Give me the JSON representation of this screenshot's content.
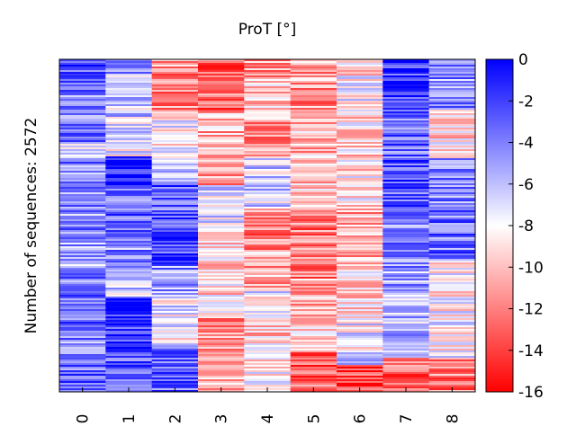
{
  "chart_data": {
    "type": "heatmap",
    "title": "ProT [°]",
    "ylabel": "Number of sequences: 2572",
    "xlabel": "",
    "x_categories": [
      "0",
      "1",
      "2",
      "3",
      "4",
      "5",
      "6",
      "7",
      "8"
    ],
    "colorbar": {
      "range": [
        -16,
        0
      ],
      "ticks": [
        "0",
        "-2",
        "-4",
        "-6",
        "-8",
        "-10",
        "-12",
        "-14",
        "-16"
      ],
      "colormap": "bwr_r",
      "low_color": "#ff0000",
      "mid_color": "#ffffff",
      "high_color": "#0000ff"
    },
    "rows": 2572,
    "column_profiles": [
      {
        "column": "0",
        "segments": [
          [
            0.0,
            0.1,
            -3.0
          ],
          [
            0.1,
            0.2,
            -4.5
          ],
          [
            0.2,
            0.25,
            -3.5
          ],
          [
            0.25,
            0.3,
            -6.5
          ],
          [
            0.3,
            0.42,
            -4.0
          ],
          [
            0.42,
            0.55,
            -4.5
          ],
          [
            0.55,
            0.65,
            -5.0
          ],
          [
            0.65,
            0.8,
            -3.5
          ],
          [
            0.8,
            0.9,
            -4.0
          ],
          [
            0.9,
            1.0,
            -3.5
          ]
        ]
      },
      {
        "column": "1",
        "segments": [
          [
            0.0,
            0.05,
            -4.0
          ],
          [
            0.05,
            0.18,
            -6.5
          ],
          [
            0.18,
            0.29,
            -7.5
          ],
          [
            0.29,
            0.38,
            -1.2
          ],
          [
            0.38,
            0.45,
            -3.5
          ],
          [
            0.45,
            0.55,
            -3.0
          ],
          [
            0.55,
            0.62,
            -4.5
          ],
          [
            0.62,
            0.72,
            -6.0
          ],
          [
            0.72,
            0.86,
            -1.5
          ],
          [
            0.86,
            1.0,
            -2.5
          ]
        ]
      },
      {
        "column": "2",
        "segments": [
          [
            0.0,
            0.04,
            -11.0
          ],
          [
            0.04,
            0.17,
            -11.5
          ],
          [
            0.17,
            0.29,
            -8.0
          ],
          [
            0.29,
            0.38,
            -7.0
          ],
          [
            0.38,
            0.52,
            -3.0
          ],
          [
            0.52,
            0.62,
            -2.0
          ],
          [
            0.62,
            0.72,
            -4.5
          ],
          [
            0.72,
            0.86,
            -7.5
          ],
          [
            0.86,
            1.0,
            -3.0
          ]
        ]
      },
      {
        "column": "3",
        "segments": [
          [
            0.0,
            0.05,
            -13.5
          ],
          [
            0.05,
            0.16,
            -12.5
          ],
          [
            0.16,
            0.29,
            -10.5
          ],
          [
            0.29,
            0.38,
            -11.5
          ],
          [
            0.38,
            0.5,
            -7.0
          ],
          [
            0.5,
            0.62,
            -9.5
          ],
          [
            0.62,
            0.76,
            -9.0
          ],
          [
            0.76,
            0.86,
            -11.0
          ],
          [
            0.86,
            1.0,
            -10.5
          ]
        ]
      },
      {
        "column": "4",
        "segments": [
          [
            0.0,
            0.06,
            -11.0
          ],
          [
            0.06,
            0.18,
            -9.5
          ],
          [
            0.18,
            0.29,
            -11.0
          ],
          [
            0.29,
            0.45,
            -6.5
          ],
          [
            0.45,
            0.58,
            -12.0
          ],
          [
            0.58,
            0.7,
            -10.5
          ],
          [
            0.7,
            0.8,
            -7.5
          ],
          [
            0.8,
            0.9,
            -9.5
          ],
          [
            0.9,
            1.0,
            -8.5
          ]
        ]
      },
      {
        "column": "5",
        "segments": [
          [
            0.0,
            0.08,
            -11.0
          ],
          [
            0.08,
            0.18,
            -11.5
          ],
          [
            0.18,
            0.3,
            -10.0
          ],
          [
            0.3,
            0.45,
            -10.0
          ],
          [
            0.45,
            0.66,
            -12.0
          ],
          [
            0.66,
            0.76,
            -10.5
          ],
          [
            0.76,
            0.88,
            -10.0
          ],
          [
            0.88,
            1.0,
            -13.0
          ]
        ]
      },
      {
        "column": "6",
        "segments": [
          [
            0.0,
            0.05,
            -9.5
          ],
          [
            0.05,
            0.15,
            -8.0
          ],
          [
            0.15,
            0.35,
            -9.0
          ],
          [
            0.35,
            0.45,
            -8.5
          ],
          [
            0.45,
            0.62,
            -10.5
          ],
          [
            0.62,
            0.76,
            -9.0
          ],
          [
            0.76,
            0.88,
            -7.5
          ],
          [
            0.88,
            0.92,
            -4.0
          ],
          [
            0.92,
            1.0,
            -14.0
          ]
        ]
      },
      {
        "column": "7",
        "segments": [
          [
            0.0,
            0.18,
            -2.0
          ],
          [
            0.18,
            0.3,
            -3.5
          ],
          [
            0.3,
            0.45,
            -2.5
          ],
          [
            0.45,
            0.6,
            -4.0
          ],
          [
            0.6,
            0.72,
            -5.0
          ],
          [
            0.72,
            0.9,
            -6.0
          ],
          [
            0.9,
            1.0,
            -12.5
          ]
        ]
      },
      {
        "column": "8",
        "segments": [
          [
            0.0,
            0.15,
            -4.5
          ],
          [
            0.15,
            0.3,
            -9.0
          ],
          [
            0.3,
            0.45,
            -4.0
          ],
          [
            0.45,
            0.6,
            -3.5
          ],
          [
            0.6,
            0.75,
            -8.5
          ],
          [
            0.75,
            0.9,
            -8.0
          ],
          [
            0.9,
            1.0,
            -12.0
          ]
        ]
      }
    ]
  }
}
